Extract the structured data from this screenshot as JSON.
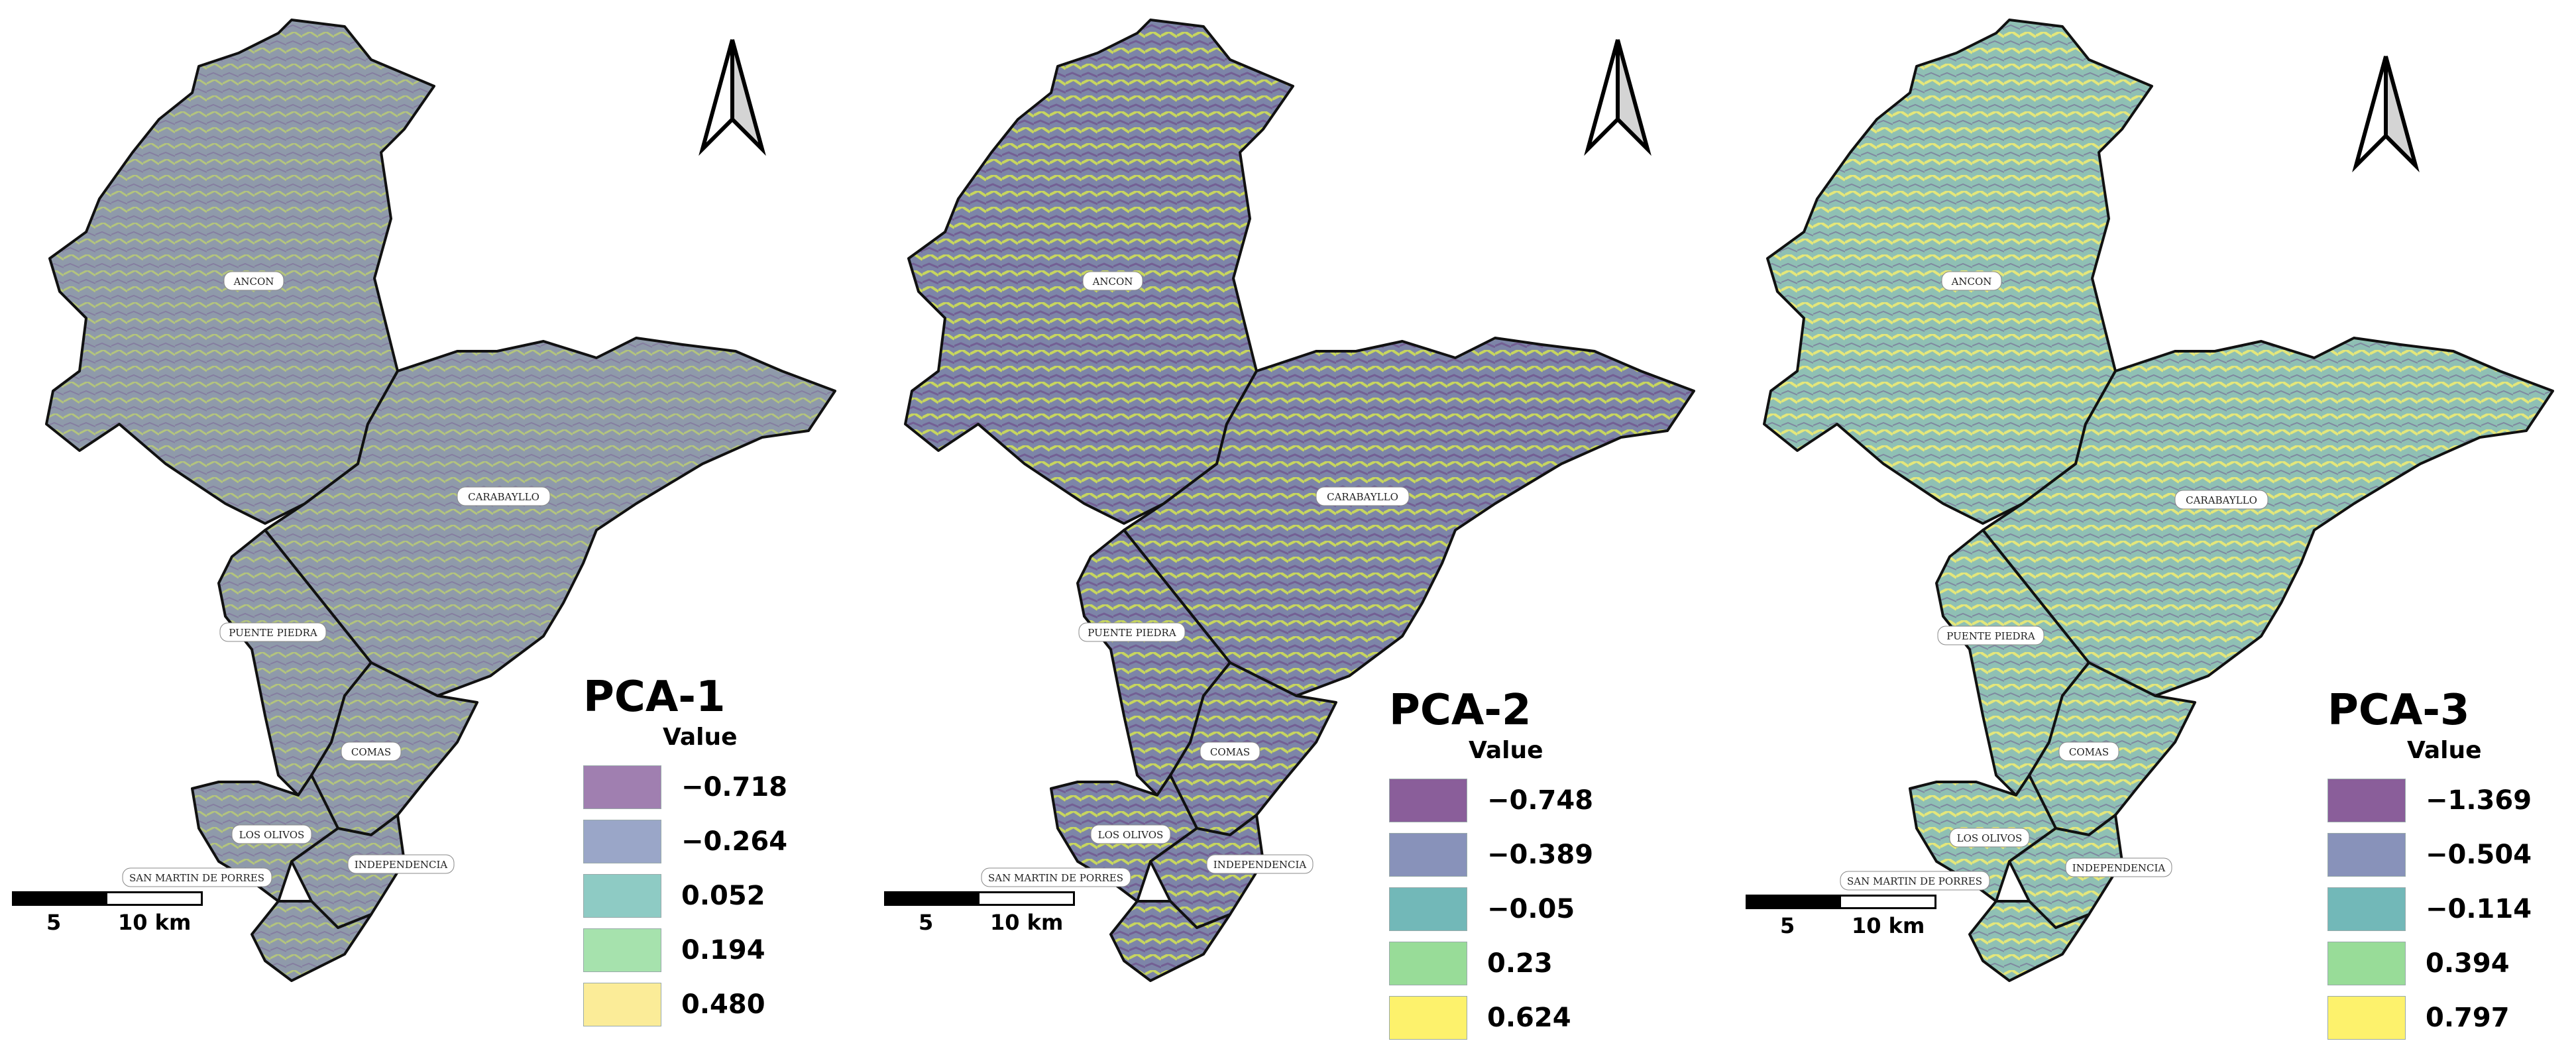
{
  "panels": [
    {
      "title": "PCA-1",
      "value_header": "Value",
      "legend": [
        {
          "label": "−0.718",
          "color": "#a07fb0"
        },
        {
          "label": "−0.264",
          "color": "#9aa6c8"
        },
        {
          "label": "0.052",
          "color": "#8ecbc4"
        },
        {
          "label": "0.194",
          "color": "#a6e2ad"
        },
        {
          "label": "0.480",
          "color": "#fbec98"
        }
      ],
      "base_color": "#8f9aaa",
      "accent_color": "#b3c47d",
      "dark_color": "#7e6a9a"
    },
    {
      "title": "PCA-2",
      "value_header": "Value",
      "legend": [
        {
          "label": "−0.748",
          "color": "#8a5e9a"
        },
        {
          "label": "−0.389",
          "color": "#8892ba"
        },
        {
          "label": "−0.05",
          "color": "#72b8b8"
        },
        {
          "label": "0.23",
          "color": "#98dc98"
        },
        {
          "label": "0.624",
          "color": "#fdf26c"
        }
      ],
      "base_color": "#7d85a8",
      "accent_color": "#c7d65e",
      "dark_color": "#6f4f8c"
    },
    {
      "title": "PCA-3",
      "value_header": "Value",
      "legend": [
        {
          "label": "−1.369",
          "color": "#8a5e9a"
        },
        {
          "label": "−0.504",
          "color": "#8892ba"
        },
        {
          "label": "−0.114",
          "color": "#72b8b8"
        },
        {
          "label": "0.394",
          "color": "#98dc98"
        },
        {
          "label": "0.797",
          "color": "#fdf26c"
        }
      ],
      "base_color": "#8fc0b4",
      "accent_color": "#e4e77a",
      "dark_color": "#6f4f8c"
    }
  ],
  "districts": {
    "ancon": "ANCON",
    "carabayllo": "CARABAYLLO",
    "puente_piedra": "PUENTE PIEDRA",
    "comas": "COMAS",
    "los_olivos": "LOS OLIVOS",
    "independencia": "INDEPENDENCIA",
    "san_martin": "SAN MARTIN DE PORRES"
  },
  "scale": {
    "left_label": "5",
    "right_label": "10 km"
  }
}
